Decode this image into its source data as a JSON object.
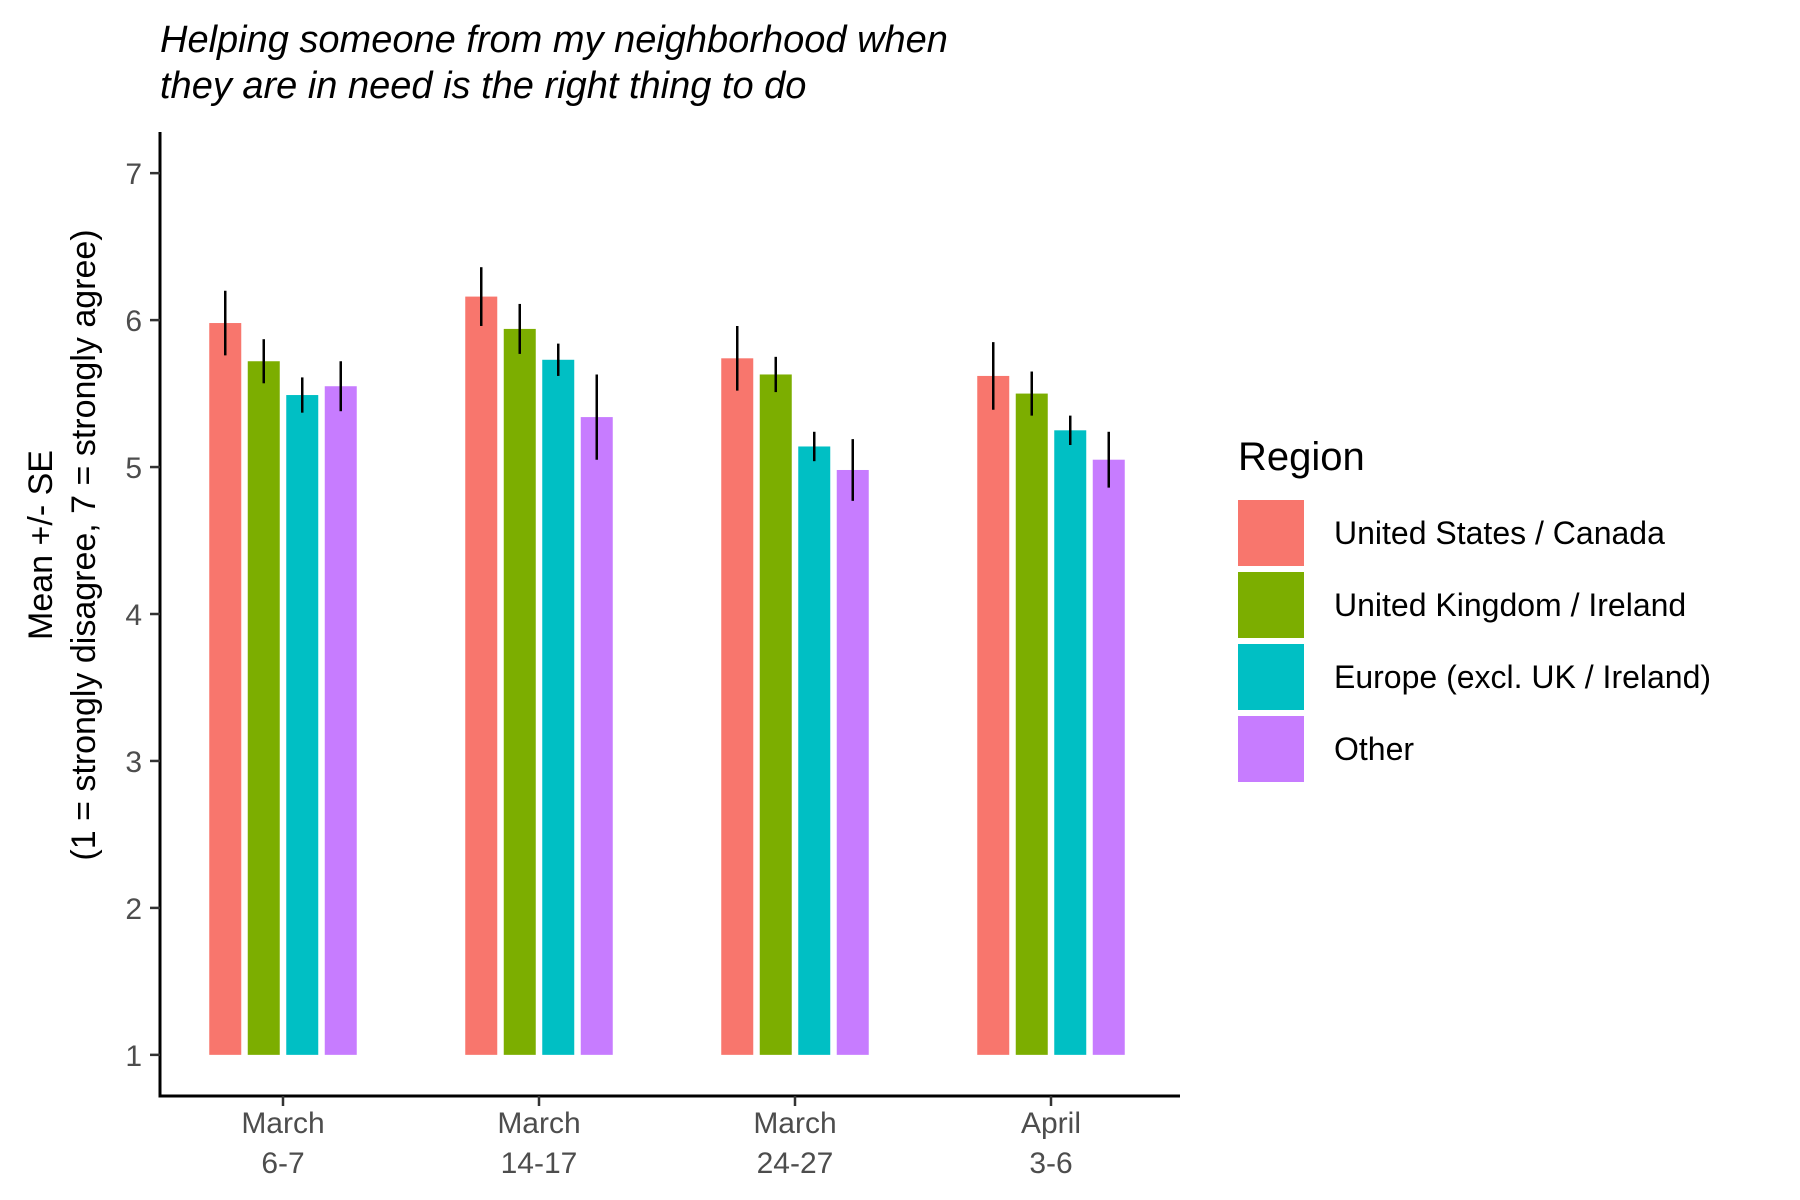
{
  "chart_data": {
    "type": "bar",
    "title_lines": [
      "Helping someone from my neighborhood when",
      "they are in need is the right thing to do"
    ],
    "ylabel_lines": [
      "Mean +/- SE",
      "(1 = strongly disagree, 7 = strongly agree)"
    ],
    "xlabel": "",
    "ylim": [
      0.72,
      7.28
    ],
    "yticks": [
      1,
      2,
      3,
      4,
      5,
      6,
      7
    ],
    "bar_base": 1,
    "categories": [
      {
        "lines": [
          "March",
          "6-7"
        ]
      },
      {
        "lines": [
          "March",
          "14-17"
        ]
      },
      {
        "lines": [
          "March",
          "24-27"
        ]
      },
      {
        "lines": [
          "April",
          "3-6"
        ]
      }
    ],
    "series": [
      {
        "name": "United States / Canada",
        "color": "#F8766D",
        "values": [
          5.98,
          6.16,
          5.74,
          5.62
        ],
        "se": [
          0.22,
          0.2,
          0.22,
          0.23
        ]
      },
      {
        "name": "United Kingdom / Ireland",
        "color": "#7CAE00",
        "values": [
          5.72,
          5.94,
          5.63,
          5.5
        ],
        "se": [
          0.15,
          0.17,
          0.12,
          0.15
        ]
      },
      {
        "name": "Europe (excl. UK / Ireland)",
        "color": "#00BFC4",
        "values": [
          5.49,
          5.73,
          5.14,
          5.25
        ],
        "se": [
          0.12,
          0.11,
          0.1,
          0.1
        ]
      },
      {
        "name": "Other",
        "color": "#C77CFF",
        "values": [
          5.55,
          5.34,
          4.98,
          5.05
        ],
        "se": [
          0.17,
          0.29,
          0.21,
          0.19
        ]
      }
    ],
    "legend": {
      "title": "Region",
      "placement": "right"
    },
    "grid": false
  }
}
